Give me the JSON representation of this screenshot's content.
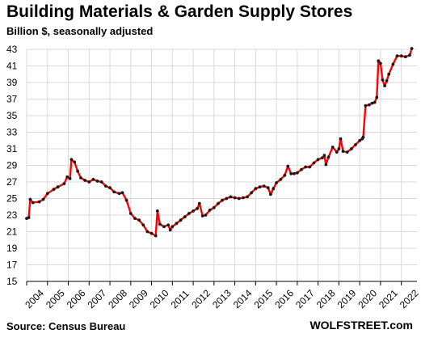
{
  "chart_data": {
    "type": "line",
    "title": "Building Materials & Garden Supply Stores",
    "subtitle": "Billion $, seasonally adjusted",
    "source": "Source: Census Bureau",
    "brand": "WOLFSTREET.com",
    "line_color": "#ff0000",
    "marker_color": "#1a1a1a",
    "grid": true,
    "grid_color": "#d9d9d9",
    "ylim": [
      15,
      43
    ],
    "yticks": [
      15,
      17,
      19,
      21,
      23,
      25,
      27,
      29,
      31,
      33,
      35,
      37,
      39,
      41,
      43
    ],
    "xlim": [
      2004,
      2022.75
    ],
    "xticks": [
      "2004",
      "2005",
      "2006",
      "2007",
      "2008",
      "2009",
      "2010",
      "2011",
      "2012",
      "2013",
      "2014",
      "2015",
      "2016",
      "2017",
      "2018",
      "2019",
      "2020",
      "2021",
      "2022"
    ],
    "anchors": [
      [
        2004.0,
        22.6
      ],
      [
        2004.1,
        22.7
      ],
      [
        2004.17,
        24.9
      ],
      [
        2004.3,
        24.5
      ],
      [
        2004.6,
        24.6
      ],
      [
        2004.8,
        24.9
      ],
      [
        2005.0,
        25.6
      ],
      [
        2005.3,
        26.1
      ],
      [
        2005.5,
        26.4
      ],
      [
        2005.8,
        26.8
      ],
      [
        2005.95,
        27.6
      ],
      [
        2006.08,
        27.4
      ],
      [
        2006.15,
        29.7
      ],
      [
        2006.3,
        29.4
      ],
      [
        2006.45,
        28.3
      ],
      [
        2006.6,
        27.5
      ],
      [
        2006.8,
        27.2
      ],
      [
        2007.0,
        27.0
      ],
      [
        2007.2,
        27.3
      ],
      [
        2007.4,
        27.1
      ],
      [
        2007.6,
        27.0
      ],
      [
        2007.8,
        26.5
      ],
      [
        2008.0,
        26.3
      ],
      [
        2008.2,
        25.8
      ],
      [
        2008.45,
        25.6
      ],
      [
        2008.6,
        25.7
      ],
      [
        2008.8,
        24.8
      ],
      [
        2009.0,
        23.2
      ],
      [
        2009.2,
        22.6
      ],
      [
        2009.4,
        22.4
      ],
      [
        2009.6,
        21.8
      ],
      [
        2009.8,
        21.0
      ],
      [
        2010.0,
        20.8
      ],
      [
        2010.2,
        20.5
      ],
      [
        2010.28,
        23.5
      ],
      [
        2010.4,
        21.9
      ],
      [
        2010.6,
        21.6
      ],
      [
        2010.8,
        21.8
      ],
      [
        2010.9,
        21.2
      ],
      [
        2011.0,
        21.6
      ],
      [
        2011.2,
        22.0
      ],
      [
        2011.4,
        22.4
      ],
      [
        2011.6,
        22.8
      ],
      [
        2011.8,
        23.2
      ],
      [
        2012.0,
        23.5
      ],
      [
        2012.2,
        23.8
      ],
      [
        2012.3,
        24.4
      ],
      [
        2012.45,
        22.9
      ],
      [
        2012.6,
        23.0
      ],
      [
        2012.8,
        23.6
      ],
      [
        2013.0,
        23.9
      ],
      [
        2013.2,
        24.4
      ],
      [
        2013.4,
        24.8
      ],
      [
        2013.6,
        25.0
      ],
      [
        2013.8,
        25.2
      ],
      [
        2014.0,
        25.1
      ],
      [
        2014.2,
        25.0
      ],
      [
        2014.4,
        25.1
      ],
      [
        2014.6,
        25.2
      ],
      [
        2014.8,
        25.7
      ],
      [
        2015.0,
        26.2
      ],
      [
        2015.2,
        26.4
      ],
      [
        2015.4,
        26.5
      ],
      [
        2015.6,
        26.3
      ],
      [
        2015.72,
        25.5
      ],
      [
        2015.85,
        26.2
      ],
      [
        2016.0,
        26.9
      ],
      [
        2016.2,
        27.3
      ],
      [
        2016.4,
        27.8
      ],
      [
        2016.55,
        28.9
      ],
      [
        2016.7,
        28.0
      ],
      [
        2016.85,
        28.0
      ],
      [
        2017.0,
        28.1
      ],
      [
        2017.2,
        28.5
      ],
      [
        2017.4,
        28.8
      ],
      [
        2017.6,
        28.8
      ],
      [
        2017.8,
        29.3
      ],
      [
        2018.0,
        29.7
      ],
      [
        2018.2,
        29.9
      ],
      [
        2018.3,
        30.2
      ],
      [
        2018.38,
        29.1
      ],
      [
        2018.5,
        30.0
      ],
      [
        2018.7,
        31.2
      ],
      [
        2018.9,
        30.6
      ],
      [
        2019.0,
        31.0
      ],
      [
        2019.08,
        32.2
      ],
      [
        2019.2,
        30.7
      ],
      [
        2019.4,
        30.6
      ],
      [
        2019.6,
        31.0
      ],
      [
        2019.8,
        31.5
      ],
      [
        2020.0,
        32.0
      ],
      [
        2020.12,
        32.2
      ],
      [
        2020.17,
        32.4
      ],
      [
        2020.28,
        36.2
      ],
      [
        2020.45,
        36.3
      ],
      [
        2020.6,
        36.5
      ],
      [
        2020.72,
        36.6
      ],
      [
        2020.82,
        37.2
      ],
      [
        2020.9,
        41.6
      ],
      [
        2021.0,
        41.3
      ],
      [
        2021.1,
        39.3
      ],
      [
        2021.2,
        38.6
      ],
      [
        2021.3,
        39.2
      ],
      [
        2021.4,
        40.0
      ],
      [
        2021.6,
        41.2
      ],
      [
        2021.8,
        42.2
      ],
      [
        2022.0,
        42.2
      ],
      [
        2022.2,
        42.1
      ],
      [
        2022.4,
        42.3
      ],
      [
        2022.5,
        43.1
      ]
    ]
  }
}
